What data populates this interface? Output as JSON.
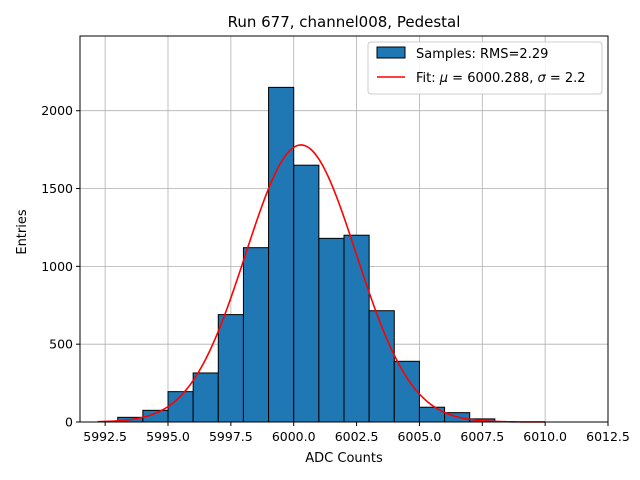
{
  "chart_data": {
    "type": "bar",
    "title": "Run 677, channel008, Pedestal",
    "xlabel": "ADC Counts",
    "ylabel": "Entries",
    "xlim": [
      5991.5,
      6012.5
    ],
    "ylim": [
      0,
      2480
    ],
    "grid": true,
    "legend_position": "top-right",
    "xticks": [
      "5992.5",
      "5995.0",
      "5997.5",
      "6000.0",
      "6002.5",
      "6005.0",
      "6007.5",
      "6010.0",
      "6012.5"
    ],
    "xtick_values": [
      5992.5,
      5995.0,
      5997.5,
      6000.0,
      6002.5,
      6005.0,
      6007.5,
      6010.0,
      6012.5
    ],
    "yticks": [
      "0",
      "500",
      "1000",
      "1500",
      "2000"
    ],
    "ytick_values": [
      0,
      500,
      1000,
      1500,
      2000
    ],
    "histogram": {
      "name": "Samples: RMS=2.29",
      "color": "#1f77b4",
      "edgecolor": "#000000",
      "bin_edges": [
        5993,
        5994,
        5995,
        5996,
        5997,
        5998,
        5999,
        6000,
        6001,
        6002,
        6003,
        6004,
        6005,
        6006,
        6007,
        6008
      ],
      "counts": [
        30,
        75,
        195,
        315,
        690,
        1120,
        2150,
        1650,
        1180,
        1200,
        715,
        390,
        95,
        60,
        20
      ]
    },
    "fit": {
      "name_prefix": "Fit: ",
      "mu_symbol": "μ",
      "mu_value": " = 6000.288, ",
      "sigma_symbol": "σ",
      "sigma_value": " = 2.2",
      "color": "#ff0000",
      "mu": 6000.288,
      "sigma": 2.2,
      "amplitude": 1780,
      "x_range": [
        5992.2,
        6010.0
      ]
    }
  }
}
